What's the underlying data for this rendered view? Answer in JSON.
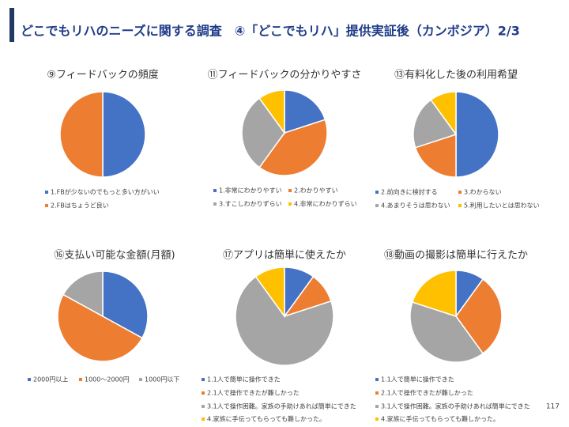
{
  "page": {
    "title": "どこでもリハのニーズに関する調査　④「どこでもリハ」提供実証後（カンボジア）2/3",
    "page_number": "117"
  },
  "chart_data": [
    {
      "type": "pie",
      "title": "⑨フィードバックの頻度",
      "categories": [
        "1.FBが少ないのでもっと多い方がいい",
        "2.FBはちょうど良い"
      ],
      "values": [
        50,
        50
      ],
      "colors": [
        "#4472c4",
        "#ed7d31"
      ]
    },
    {
      "type": "pie",
      "title": "⑪フィードバックの分かりやすさ",
      "categories": [
        "1.非常にわかりやすい",
        "2.わかりやすい",
        "3.すこしわかりずらい",
        "4.非常にわかりずらい"
      ],
      "values": [
        20,
        40,
        30,
        10
      ],
      "colors": [
        "#4472c4",
        "#ed7d31",
        "#a5a5a5",
        "#ffc000"
      ]
    },
    {
      "type": "pie",
      "title": "⑬有料化した後の利用希望",
      "categories": [
        "2.前向きに検討する",
        "3.わからない",
        "4.あまりそうは思わない",
        "5.利用したいとは思わない"
      ],
      "values": [
        50,
        20,
        20,
        10
      ],
      "colors": [
        "#4472c4",
        "#ed7d31",
        "#a5a5a5",
        "#ffc000"
      ]
    },
    {
      "type": "pie",
      "title": "⑯支払い可能な金額(月額)",
      "categories": [
        "2000円以上",
        "1000～2000円",
        "1000円以下"
      ],
      "values": [
        33,
        50,
        17
      ],
      "colors": [
        "#4472c4",
        "#ed7d31",
        "#a5a5a5"
      ]
    },
    {
      "type": "pie",
      "title": "⑰アプリは簡単に使えたか",
      "categories": [
        "1.1人で簡単に操作できた",
        "2.1人で操作できたが難しかった",
        "3.1人で操作困難。家族の手助けあれば簡単にできた",
        "4.家族に手伝ってもらっても難しかった。"
      ],
      "values": [
        10,
        10,
        70,
        10
      ],
      "colors": [
        "#4472c4",
        "#ed7d31",
        "#a5a5a5",
        "#ffc000"
      ]
    },
    {
      "type": "pie",
      "title": "⑱動画の撮影は簡単に行えたか",
      "categories": [
        "1.1人で簡単に操作できた",
        "2.1人で操作できたが難しかった",
        "3.1人で操作困難。家族の手助けあれば簡単にできた",
        "4.家族に手伝ってもらっても難しかった。"
      ],
      "values": [
        10,
        30,
        40,
        20
      ],
      "colors": [
        "#4472c4",
        "#ed7d31",
        "#a5a5a5",
        "#ffc000"
      ]
    }
  ]
}
